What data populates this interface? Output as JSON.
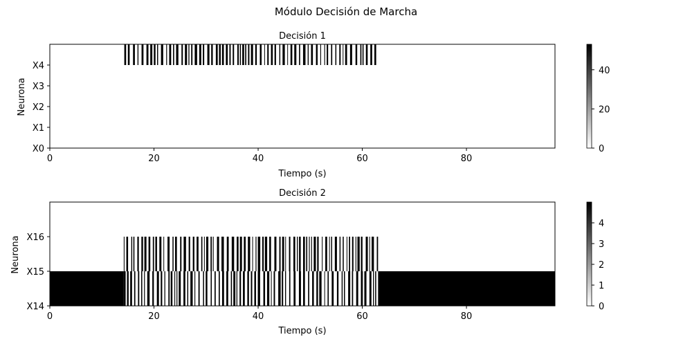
{
  "figure": {
    "suptitle": "Módulo Decisión de Marcha"
  },
  "chart_data": [
    {
      "type": "heatmap",
      "title": "Decisión 1",
      "xlabel": "Tiempo (s)",
      "ylabel": "Neurona",
      "xlim": [
        0,
        97
      ],
      "x_ticks": [
        0,
        20,
        40,
        60,
        80
      ],
      "y_ticks": [
        "X0",
        "X1",
        "X2",
        "X3",
        "X4"
      ],
      "y_range": [
        0,
        5
      ],
      "colormap": "gray_r",
      "colorbar": {
        "range": [
          0,
          53
        ],
        "ticks": [
          0,
          20,
          40
        ]
      },
      "rows": [
        {
          "neuron": "X4",
          "active_interval": [
            14.3,
            63.2
          ],
          "pattern": "dense spike train (vertical black bars)"
        }
      ]
    },
    {
      "type": "heatmap",
      "title": "Decisión 2",
      "xlabel": "Tiempo (s)",
      "ylabel": "Neurona",
      "xlim": [
        0,
        97
      ],
      "x_ticks": [
        0,
        20,
        40,
        60,
        80
      ],
      "y_ticks": [
        "X14",
        "X15",
        "X16"
      ],
      "y_range": [
        14,
        17
      ],
      "colormap": "gray_r",
      "colorbar": {
        "range": [
          0,
          5
        ],
        "ticks": [
          0,
          1,
          2,
          3,
          4
        ]
      },
      "rows": [
        {
          "neuron": "X14",
          "solid_intervals": [
            [
              0,
              14.2
            ],
            [
              63.3,
              97
            ]
          ],
          "spike_interval": [
            14.2,
            63.3
          ]
        },
        {
          "neuron": "X15",
          "spike_interval": [
            14.2,
            63.3
          ]
        }
      ]
    }
  ]
}
